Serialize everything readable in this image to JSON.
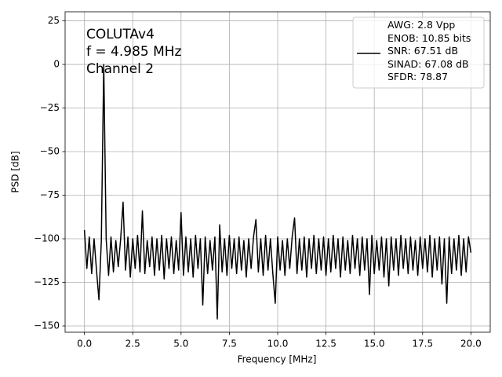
{
  "chart_data": {
    "type": "line",
    "xlabel": "Frequency [MHz]",
    "ylabel": "PSD [dB]",
    "annotation_lines": [
      "COLUTAv4",
      "f = 4.985 MHz",
      "Channel 2"
    ],
    "xlim": [
      -1,
      21
    ],
    "ylim": [
      -153.6,
      30.2
    ],
    "xticks": [
      {
        "value": 0,
        "label": "0.0"
      },
      {
        "value": 2.5,
        "label": "2.5"
      },
      {
        "value": 5,
        "label": "5.0"
      },
      {
        "value": 7.5,
        "label": "7.5"
      },
      {
        "value": 10,
        "label": "10.0"
      },
      {
        "value": 12.5,
        "label": "12.5"
      },
      {
        "value": 15,
        "label": "15.0"
      },
      {
        "value": 17.5,
        "label": "17.5"
      },
      {
        "value": 20,
        "label": "20.0"
      }
    ],
    "yticks": [
      25,
      0,
      {
        "value": -25,
        "label": "−25"
      },
      {
        "value": -50,
        "label": "−50"
      },
      {
        "value": -75,
        "label": "−75"
      },
      {
        "value": -100,
        "label": "−100"
      },
      {
        "value": -125,
        "label": "−125"
      },
      {
        "value": -150,
        "label": "−150"
      }
    ],
    "grid": true,
    "legend": "upper right",
    "x": [
      0,
      0.125,
      0.25,
      0.375,
      0.5,
      0.625,
      0.75,
      0.875,
      1,
      1.125,
      1.25,
      1.375,
      1.5,
      1.625,
      1.75,
      1.875,
      2,
      2.125,
      2.25,
      2.375,
      2.5,
      2.625,
      2.75,
      2.875,
      3,
      3.125,
      3.25,
      3.375,
      3.5,
      3.625,
      3.75,
      3.875,
      4,
      4.125,
      4.25,
      4.375,
      4.5,
      4.625,
      4.75,
      4.875,
      5,
      5.125,
      5.25,
      5.375,
      5.5,
      5.625,
      5.75,
      5.875,
      6,
      6.125,
      6.25,
      6.375,
      6.5,
      6.625,
      6.75,
      6.875,
      7,
      7.125,
      7.25,
      7.375,
      7.5,
      7.625,
      7.75,
      7.875,
      8,
      8.125,
      8.25,
      8.375,
      8.5,
      8.625,
      8.75,
      8.875,
      9,
      9.125,
      9.25,
      9.375,
      9.5,
      9.625,
      9.75,
      9.875,
      10,
      10.125,
      10.25,
      10.375,
      10.5,
      10.625,
      10.75,
      10.875,
      11,
      11.125,
      11.25,
      11.375,
      11.5,
      11.625,
      11.75,
      11.875,
      12,
      12.125,
      12.25,
      12.375,
      12.5,
      12.625,
      12.75,
      12.875,
      13,
      13.125,
      13.25,
      13.375,
      13.5,
      13.625,
      13.75,
      13.875,
      14,
      14.125,
      14.25,
      14.375,
      14.5,
      14.625,
      14.75,
      14.875,
      15,
      15.125,
      15.25,
      15.375,
      15.5,
      15.625,
      15.75,
      15.875,
      16,
      16.125,
      16.25,
      16.375,
      16.5,
      16.625,
      16.75,
      16.875,
      17,
      17.125,
      17.25,
      17.375,
      17.5,
      17.625,
      17.75,
      17.875,
      18,
      18.125,
      18.25,
      18.375,
      18.5,
      18.625,
      18.75,
      18.875,
      19,
      19.125,
      19.25,
      19.375,
      19.5,
      19.625,
      19.75,
      19.875,
      20
    ],
    "series": [
      {
        "name": "AWG: 2.8 Vpp\nENOB: 10.85 bits\nSNR: 67.51 dB\nSINAD: 67.08 dB\nSFDR: 78.87",
        "color": "#000000",
        "values": [
          -95,
          -117,
          -99,
          -120,
          -100,
          -118,
          -135,
          -101,
          0,
          -100,
          -121,
          -99,
          -119,
          -101,
          -116,
          -100,
          -79,
          -118,
          -99,
          -122,
          -100,
          -117,
          -98,
          -119,
          -84,
          -120,
          -101,
          -116,
          -99,
          -121,
          -100,
          -118,
          -98,
          -123,
          -100,
          -117,
          -99,
          -120,
          -101,
          -118,
          -85,
          -121,
          -99,
          -119,
          -100,
          -122,
          -98,
          -117,
          -100,
          -138,
          -99,
          -120,
          -101,
          -118,
          -99,
          -146,
          -92,
          -119,
          -100,
          -121,
          -98,
          -117,
          -100,
          -120,
          -99,
          -118,
          -101,
          -122,
          -100,
          -117,
          -99,
          -89,
          -119,
          -100,
          -121,
          -98,
          -118,
          -100,
          -120,
          -137,
          -99,
          -118,
          -101,
          -121,
          -100,
          -117,
          -99,
          -88,
          -120,
          -100,
          -118,
          -99,
          -122,
          -100,
          -117,
          -98,
          -120,
          -100,
          -118,
          -99,
          -121,
          -100,
          -119,
          -98,
          -117,
          -100,
          -122,
          -99,
          -118,
          -101,
          -120,
          -98,
          -117,
          -100,
          -121,
          -99,
          -118,
          -100,
          -132,
          -98,
          -120,
          -101,
          -118,
          -99,
          -122,
          -100,
          -127,
          -99,
          -118,
          -100,
          -121,
          -98,
          -117,
          -100,
          -120,
          -99,
          -118,
          -101,
          -121,
          -99,
          -117,
          -100,
          -119,
          -98,
          -122,
          -100,
          -118,
          -99,
          -126,
          -100,
          -137,
          -99,
          -120,
          -100,
          -118,
          -98,
          -121,
          -100,
          -119,
          -99,
          -108
        ]
      }
    ]
  }
}
